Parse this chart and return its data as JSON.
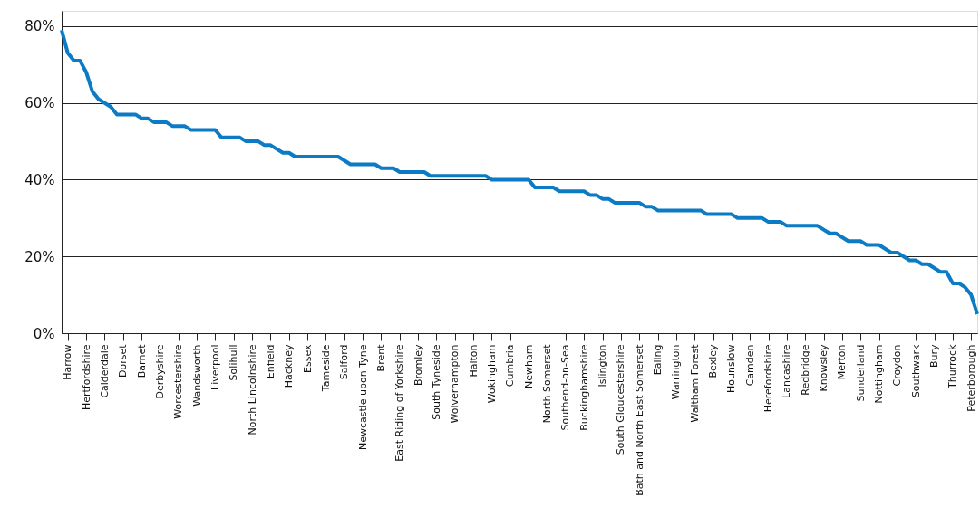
{
  "chart_data": {
    "type": "line",
    "categories": [
      null,
      "Harrow",
      null,
      null,
      "Hertfordshire",
      null,
      null,
      "Calderdale",
      null,
      null,
      "Dorset",
      null,
      null,
      "Barnet",
      null,
      null,
      "Derbyshire",
      null,
      null,
      "Worcestershire",
      null,
      null,
      "Wandsworth",
      null,
      null,
      "Liverpool",
      null,
      null,
      "Solihull",
      null,
      null,
      "North Lincolnshire",
      null,
      null,
      "Enfield",
      null,
      null,
      "Hackney",
      null,
      null,
      "Essex",
      null,
      null,
      "Tameside",
      null,
      null,
      "Salford",
      null,
      null,
      "Newcastle upon Tyne",
      null,
      null,
      "Brent",
      null,
      null,
      "East Riding of Yorkshire",
      null,
      null,
      "Bromley",
      null,
      null,
      "South Tyneside",
      null,
      null,
      "Wolverhampton",
      null,
      null,
      "Halton",
      null,
      null,
      "Wokingham",
      null,
      null,
      "Cumbria",
      null,
      null,
      "Newham",
      null,
      null,
      "North Somerset",
      null,
      null,
      "Southend-on-Sea",
      null,
      null,
      "Buckinghamshire",
      null,
      null,
      "Islington",
      null,
      null,
      "South Gloucestershire",
      null,
      null,
      "Bath and North East Somerset",
      null,
      null,
      "Ealing",
      null,
      null,
      "Warrington",
      null,
      null,
      "Waltham Forest",
      null,
      null,
      "Bexley",
      null,
      null,
      "Hounslow",
      null,
      null,
      "Camden",
      null,
      null,
      "Herefordshire",
      null,
      null,
      "Lancashire",
      null,
      null,
      "Redbridge",
      null,
      null,
      "Knowsley",
      null,
      null,
      "Merton",
      null,
      null,
      "Sunderland",
      null,
      null,
      "Nottingham",
      null,
      null,
      "Croydon",
      null,
      null,
      "Southwark",
      null,
      null,
      "Bury",
      null,
      null,
      "Thurrock",
      null,
      null,
      "Peterborough",
      null
    ],
    "series": [
      {
        "color": "#0a7bc4",
        "values": [
          79,
          73,
          71,
          71,
          68,
          63,
          61,
          60,
          59,
          57,
          57,
          57,
          57,
          56,
          56,
          55,
          55,
          55,
          54,
          54,
          54,
          53,
          53,
          53,
          53,
          53,
          51,
          51,
          51,
          51,
          50,
          50,
          50,
          49,
          49,
          48,
          47,
          47,
          46,
          46,
          46,
          46,
          46,
          46,
          46,
          46,
          45,
          44,
          44,
          44,
          44,
          44,
          43,
          43,
          43,
          42,
          42,
          42,
          42,
          42,
          41,
          41,
          41,
          41,
          41,
          41,
          41,
          41,
          41,
          41,
          40,
          40,
          40,
          40,
          40,
          40,
          40,
          38,
          38,
          38,
          38,
          37,
          37,
          37,
          37,
          37,
          36,
          36,
          35,
          35,
          34,
          34,
          34,
          34,
          34,
          33,
          33,
          32,
          32,
          32,
          32,
          32,
          32,
          32,
          32,
          31,
          31,
          31,
          31,
          31,
          30,
          30,
          30,
          30,
          30,
          29,
          29,
          29,
          28,
          28,
          28,
          28,
          28,
          28,
          27,
          26,
          26,
          25,
          24,
          24,
          24,
          23,
          23,
          23,
          22,
          21,
          21,
          20,
          19,
          19,
          18,
          18,
          17,
          16,
          16,
          13,
          13,
          12,
          10,
          5
        ]
      }
    ],
    "ylim": [
      0,
      84
    ],
    "yticks": [
      {
        "value": 0,
        "label": "0%"
      },
      {
        "value": 20,
        "label": "20%"
      },
      {
        "value": 40,
        "label": "40%"
      },
      {
        "value": 60,
        "label": "60%"
      },
      {
        "value": 80,
        "label": "80%"
      }
    ],
    "grid": "y",
    "marker": "none",
    "line_style": "solid"
  }
}
